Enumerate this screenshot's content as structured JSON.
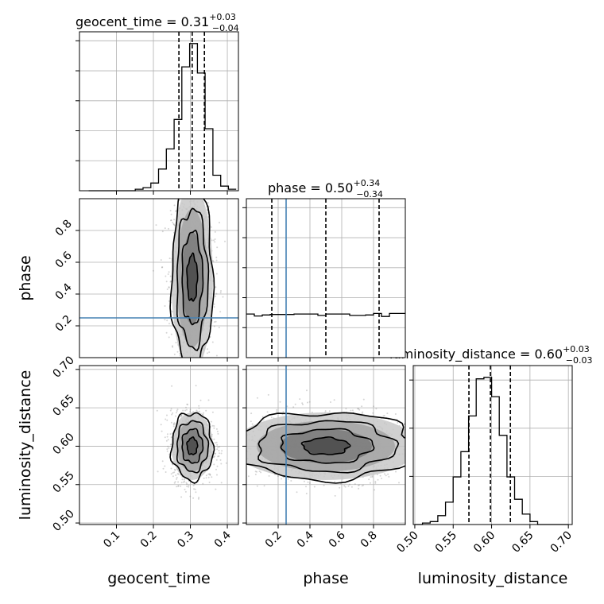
{
  "chart_data": {
    "type": "corner",
    "parameters": [
      {
        "name": "geocent_time",
        "range": [
          0.0,
          0.43
        ],
        "ticks": [
          0.1,
          0.2,
          0.3,
          0.4
        ],
        "tick_labels": [
          "0.1",
          "0.2",
          "0.3",
          "0.4"
        ],
        "quantiles": [
          0.269,
          0.305,
          0.338
        ],
        "median": "0.31",
        "plus": "+0.03",
        "minus": "−0.04"
      },
      {
        "name": "phase",
        "range": [
          0.0,
          1.0
        ],
        "ticks": [
          0.2,
          0.4,
          0.6,
          0.8
        ],
        "tick_labels": [
          "0.2",
          "0.4",
          "0.6",
          "0.8"
        ],
        "quantiles": [
          0.16,
          0.5,
          0.835
        ],
        "median": "0.50",
        "plus": "+0.34",
        "minus": "−0.34",
        "truth": 0.25
      },
      {
        "name": "luminosity_distance",
        "range": [
          0.498,
          0.705
        ],
        "ticks": [
          0.5,
          0.55,
          0.6,
          0.65,
          0.7
        ],
        "tick_labels": [
          "0.50",
          "0.55",
          "0.60",
          "0.65",
          "0.70"
        ],
        "quantiles": [
          0.5705,
          0.5985,
          0.6245
        ],
        "median": "0.60",
        "plus": "+0.03",
        "minus": "−0.03"
      }
    ],
    "marginals": {
      "geocent_time": {
        "bin_edges": [
          0.025,
          0.046,
          0.067,
          0.088,
          0.109,
          0.13,
          0.151,
          0.172,
          0.193,
          0.214,
          0.235,
          0.256,
          0.277,
          0.298,
          0.319,
          0.34,
          0.361,
          0.382,
          0.403,
          0.424
        ],
        "counts": [
          0,
          0,
          0,
          0,
          0,
          0,
          1,
          2,
          5,
          14,
          27,
          46,
          80,
          95,
          76,
          40,
          10,
          3,
          1
        ]
      },
      "phase": {
        "bin_edges": [
          0.0,
          0.05,
          0.1,
          0.15,
          0.2,
          0.25,
          0.3,
          0.35,
          0.4,
          0.45,
          0.5,
          0.55,
          0.6,
          0.65,
          0.7,
          0.75,
          0.8,
          0.85,
          0.9,
          0.95,
          1.0
        ],
        "counts": [
          88,
          84,
          86,
          87,
          87,
          87,
          88,
          88,
          88,
          85,
          88,
          88,
          88,
          85,
          85,
          86,
          89,
          83,
          89,
          89
        ]
      },
      "luminosity_distance": {
        "bin_edges": [
          0.5,
          0.51,
          0.52,
          0.53,
          0.54,
          0.55,
          0.56,
          0.57,
          0.58,
          0.59,
          0.6,
          0.61,
          0.62,
          0.63,
          0.64,
          0.65,
          0.66,
          0.67,
          0.68,
          0.69,
          0.7
        ],
        "counts": [
          0,
          1,
          2,
          6,
          15,
          32,
          49,
          73,
          98,
          99,
          86,
          60,
          32,
          17,
          7,
          2,
          0,
          0,
          0,
          0
        ]
      }
    },
    "joint_2d": {
      "phase_vs_geocent_time": {
        "center_x": 0.305,
        "center_y": 0.5,
        "sigma_x": 0.028,
        "sigma_y": 0.29
      },
      "luminosity_distance_vs_geocent_time": {
        "center_x": 0.305,
        "center_y": 0.6,
        "sigma_x": 0.028,
        "sigma_y": 0.022
      },
      "luminosity_distance_vs_phase": {
        "center_x": 0.5,
        "center_y": 0.6,
        "sigma_x": 0.29,
        "sigma_y": 0.022
      }
    },
    "grid": true,
    "quantile_style": "dashed",
    "truth_color": "#4682b4"
  }
}
